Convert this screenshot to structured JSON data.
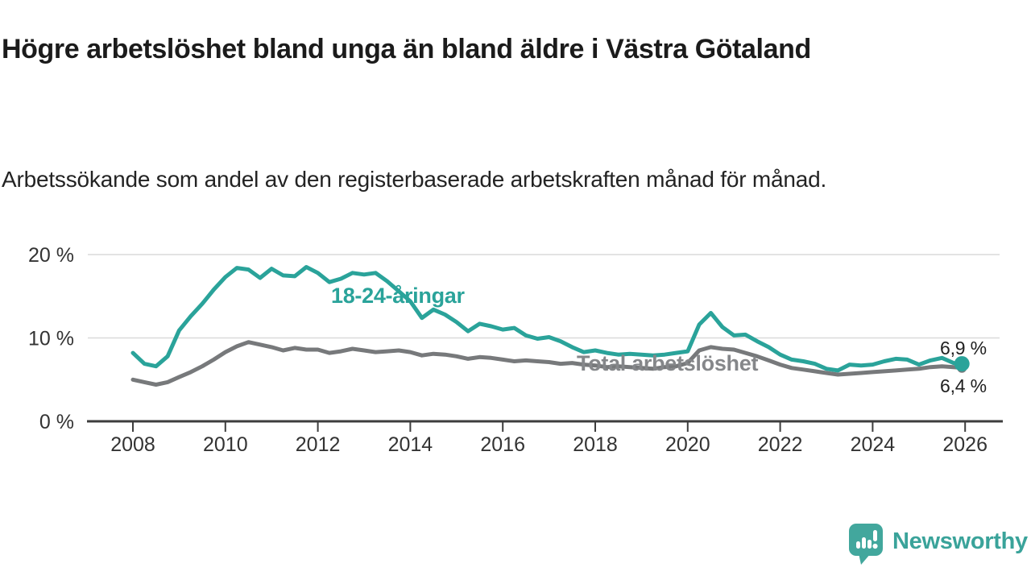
{
  "header": {
    "title": "Högre arbetslöshet bland unga än bland äldre i Västra Götaland",
    "subtitle": "Arbetssökande som andel av den registerbaserade arbetskraften månad för månad."
  },
  "chart_data": {
    "type": "line",
    "x_start": 2008,
    "x_step": 0.25,
    "x_axis": {
      "ticks": [
        2008,
        2010,
        2012,
        2014,
        2016,
        2018,
        2020,
        2022,
        2024,
        2026
      ]
    },
    "y_axis": {
      "ticks": [
        {
          "value": 0,
          "label": "0 %"
        },
        {
          "value": 10,
          "label": "10 %"
        },
        {
          "value": 20,
          "label": "20 %"
        }
      ],
      "ylim": [
        0,
        22
      ],
      "unit": "%"
    },
    "grid": "horizontal",
    "legend_position": "inline-labels",
    "series": [
      {
        "name": "18-24-åringar",
        "color": "#2aa39a",
        "end_label": "6,9 %",
        "end_dot": true,
        "values": [
          8.2,
          6.9,
          6.6,
          7.8,
          10.9,
          12.6,
          14.1,
          15.8,
          17.3,
          18.4,
          18.2,
          17.2,
          18.3,
          17.5,
          17.4,
          18.5,
          17.8,
          16.7,
          17.1,
          17.8,
          17.6,
          17.8,
          16.8,
          15.6,
          14.4,
          12.4,
          13.4,
          12.8,
          11.9,
          10.8,
          11.7,
          11.4,
          11.0,
          11.2,
          10.3,
          9.9,
          10.1,
          9.6,
          8.9,
          8.3,
          8.5,
          8.2,
          8.0,
          8.1,
          8.0,
          7.9,
          8.0,
          8.2,
          8.4,
          11.6,
          13.0,
          11.3,
          10.3,
          10.4,
          9.6,
          8.9,
          8.0,
          7.4,
          7.2,
          6.9,
          6.3,
          6.1,
          6.8,
          6.7,
          6.8,
          7.2,
          7.5,
          7.4,
          6.8,
          7.3,
          7.6,
          7.0,
          6.9
        ]
      },
      {
        "name": "Total arbetslöshet",
        "color": "#77797b",
        "end_label": "6,4 %",
        "end_dot": true,
        "values": [
          5.0,
          4.7,
          4.4,
          4.7,
          5.3,
          5.9,
          6.6,
          7.4,
          8.3,
          9.0,
          9.5,
          9.2,
          8.9,
          8.5,
          8.8,
          8.6,
          8.6,
          8.2,
          8.4,
          8.7,
          8.5,
          8.3,
          8.4,
          8.5,
          8.3,
          7.9,
          8.1,
          8.0,
          7.8,
          7.5,
          7.7,
          7.6,
          7.4,
          7.2,
          7.3,
          7.2,
          7.1,
          6.9,
          7.0,
          6.8,
          6.7,
          6.5,
          6.6,
          6.5,
          6.4,
          6.3,
          6.5,
          6.6,
          7.0,
          8.5,
          8.9,
          8.7,
          8.6,
          8.2,
          7.8,
          7.3,
          6.8,
          6.4,
          6.2,
          6.0,
          5.8,
          5.6,
          5.7,
          5.8,
          5.9,
          6.0,
          6.1,
          6.2,
          6.3,
          6.5,
          6.6,
          6.5,
          6.4
        ]
      }
    ]
  },
  "footer": {
    "brand": "Newsworthy"
  }
}
